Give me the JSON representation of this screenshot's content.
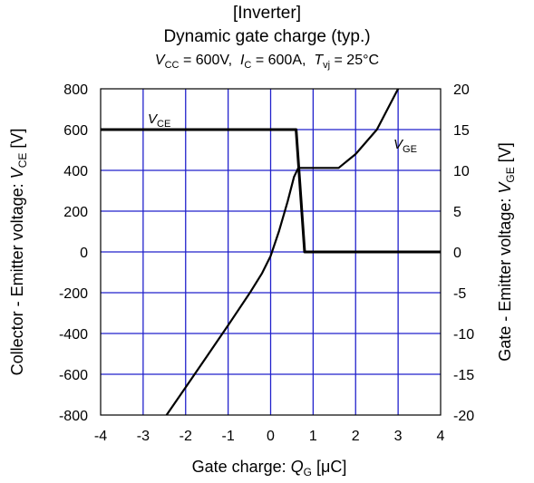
{
  "header": {
    "line1": "[Inverter]",
    "line2": "Dynamic gate charge (typ.)",
    "cond": {
      "vcc_sym": "V",
      "vcc_sub": "CC",
      "vcc_val": "=   600V,",
      "ic_sym": "I",
      "ic_sub": "C",
      "ic_val": "=  600A,",
      "tvj_sym": "T",
      "tvj_sub": "vj",
      "tvj_val": "= 25°C"
    }
  },
  "axes": {
    "x_label_pre": "Gate charge:",
    "x_label_sym": "Q",
    "x_label_sub": "G",
    "x_label_unit": "[μC]",
    "y_left_label_pre": "Collector - Emitter voltage:",
    "y_left_label_sym": "V",
    "y_left_label_sub": "CE",
    "y_left_label_unit": "[V]",
    "y_right_label_pre": "Gate - Emitter voltage:",
    "y_right_label_sym": "V",
    "y_right_label_sub": "GE",
    "y_right_label_unit": "[V]"
  },
  "chart_data": {
    "type": "line",
    "title": "Dynamic gate charge (typ.)",
    "x_ticks": [
      "-4",
      "-3",
      "-2",
      "-1",
      "0",
      "1",
      "2",
      "3",
      "4"
    ],
    "y_left_ticks": [
      "800",
      "600",
      "400",
      "200",
      "0",
      "-200",
      "-400",
      "-600",
      "-800"
    ],
    "y_right_ticks": [
      "20",
      "15",
      "10",
      "5",
      "0",
      "-5",
      "-10",
      "-15",
      "-20"
    ],
    "xlim": [
      -4,
      4
    ],
    "ylim_left": [
      -800,
      800
    ],
    "ylim_right": [
      -20,
      20
    ],
    "grid": true,
    "grid_color": "#2222cc",
    "line_color": "#000000",
    "series": [
      {
        "name": "VCE",
        "label_sym": "V",
        "label_sub": "CE",
        "axis": "left",
        "x": [
          -4.0,
          0.6,
          0.8,
          4.0
        ],
        "y": [
          600,
          600,
          0,
          0
        ]
      },
      {
        "name": "VGE",
        "label_sym": "V",
        "label_sub": "GE",
        "axis": "right",
        "x": [
          -2.45,
          -2.0,
          -1.5,
          -1.0,
          -0.5,
          -0.2,
          0.0,
          0.2,
          0.4,
          0.55,
          0.65,
          1.6,
          2.0,
          2.5,
          3.0
        ],
        "y": [
          -20.0,
          -16.6,
          -12.8,
          -9.0,
          -5.1,
          -2.6,
          -0.5,
          2.6,
          6.2,
          9.2,
          10.3,
          10.3,
          12.0,
          15.0,
          20.0
        ]
      }
    ]
  }
}
